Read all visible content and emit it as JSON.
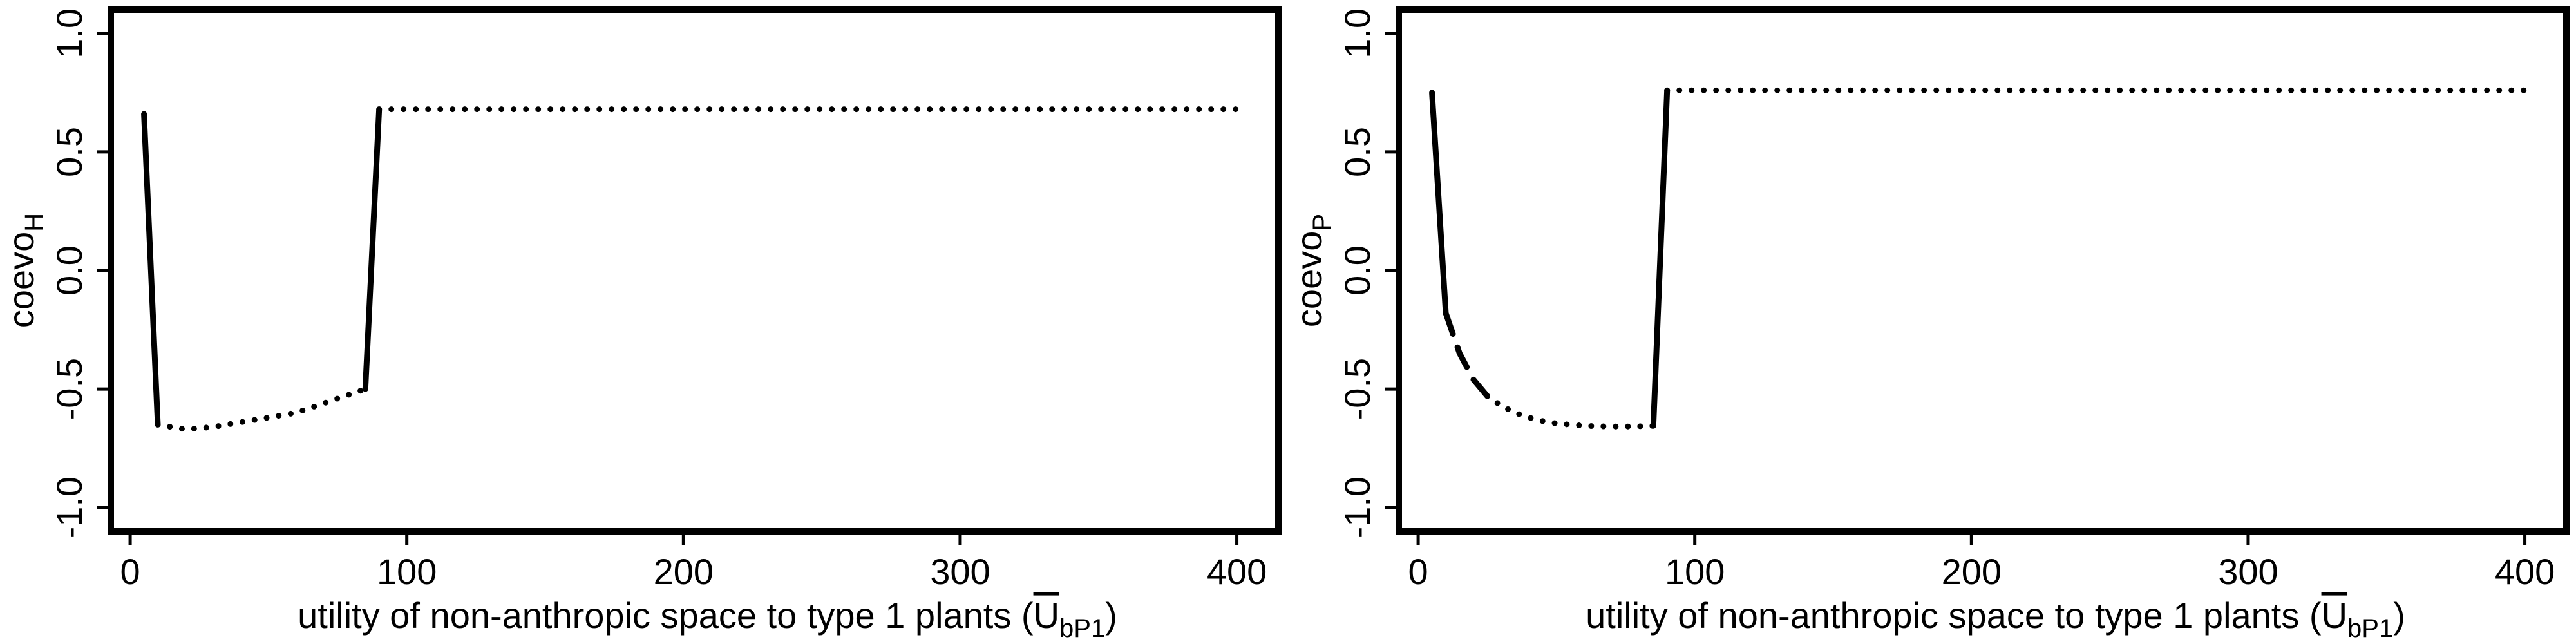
{
  "chart_data": [
    {
      "type": "line",
      "xlabel_main": "utility of non-anthropic space to type 1 plants (",
      "xlabel_symbol": "U",
      "xlabel_sub": "bP1",
      "xlabel_end": ")",
      "ylabel_main": "coevo",
      "ylabel_sub": "H",
      "xlim": [
        -7,
        415
      ],
      "ylim": [
        -1.1,
        1.1
      ],
      "xticks": [
        0,
        100,
        200,
        300,
        400
      ],
      "xtick_labels": [
        "0",
        "100",
        "200",
        "300",
        "400"
      ],
      "yticks": [
        -1.0,
        -0.5,
        0.0,
        0.5,
        1.0
      ],
      "ytick_labels": [
        "-1.0",
        "-0.5",
        "0.0",
        "0.5",
        "1.0"
      ],
      "series": [
        {
          "style": "solid",
          "x": [
            5,
            10
          ],
          "y": [
            0.66,
            -0.65
          ]
        },
        {
          "style": "dotted",
          "x": [
            10,
            15,
            20,
            25,
            30,
            35,
            40,
            45,
            50,
            55,
            60,
            65,
            70,
            75,
            80,
            85
          ],
          "y": [
            -0.65,
            -0.66,
            -0.67,
            -0.665,
            -0.66,
            -0.65,
            -0.64,
            -0.63,
            -0.62,
            -0.61,
            -0.6,
            -0.58,
            -0.56,
            -0.54,
            -0.52,
            -0.5
          ]
        },
        {
          "style": "solid",
          "x": [
            85,
            90
          ],
          "y": [
            -0.5,
            0.68
          ]
        },
        {
          "style": "dotted",
          "x": [
            90,
            400
          ],
          "y": [
            0.68,
            0.68
          ]
        }
      ]
    },
    {
      "type": "line",
      "xlabel_main": "utility of non-anthropic space to type 1 plants (",
      "xlabel_symbol": "U",
      "xlabel_sub": "bP1",
      "xlabel_end": ")",
      "ylabel_main": "coevo",
      "ylabel_sub": "P",
      "xlim": [
        -7,
        415
      ],
      "ylim": [
        -1.1,
        1.1
      ],
      "xticks": [
        0,
        100,
        200,
        300,
        400
      ],
      "xtick_labels": [
        "0",
        "100",
        "200",
        "300",
        "400"
      ],
      "yticks": [
        -1.0,
        -0.5,
        0.0,
        0.5,
        1.0
      ],
      "ytick_labels": [
        "-1.0",
        "-0.5",
        "0.0",
        "0.5",
        "1.0"
      ],
      "series": [
        {
          "style": "solid",
          "x": [
            5,
            10
          ],
          "y": [
            0.75,
            -0.18
          ]
        },
        {
          "style": "dashed",
          "x": [
            10,
            15,
            20,
            25
          ],
          "y": [
            -0.18,
            -0.35,
            -0.46,
            -0.53
          ]
        },
        {
          "style": "dotted",
          "x": [
            25,
            30,
            35,
            40,
            45,
            50,
            55,
            60,
            65,
            70,
            75,
            80,
            85
          ],
          "y": [
            -0.53,
            -0.57,
            -0.6,
            -0.62,
            -0.635,
            -0.645,
            -0.65,
            -0.655,
            -0.657,
            -0.658,
            -0.658,
            -0.657,
            -0.655
          ]
        },
        {
          "style": "solid",
          "x": [
            85,
            90
          ],
          "y": [
            -0.655,
            0.76
          ]
        },
        {
          "style": "dotted",
          "x": [
            90,
            400
          ],
          "y": [
            0.76,
            0.76
          ]
        }
      ]
    }
  ]
}
